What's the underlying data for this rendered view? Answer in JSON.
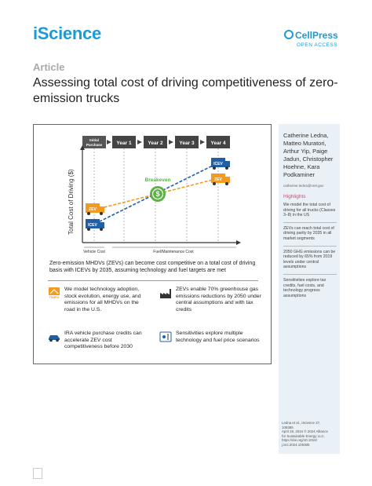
{
  "header": {
    "journal": "iScience",
    "publisher": "CellPress",
    "access": "OPEN ACCESS"
  },
  "article": {
    "type": "Article",
    "title": "Assessing total cost of driving competitiveness of zero-emission trucks"
  },
  "figure": {
    "timeline": [
      "Initial Purchase",
      "Year 1",
      "Year 2",
      "Year 3",
      "Year 4"
    ],
    "ylabel": "Total Cost of Driving ($)",
    "x_left_label": "Vehicle Cost",
    "x_right_label": "Fuel/Maintenance Cost",
    "breakeven_label": "Breakeven",
    "zev_label": "ZEV",
    "icev_label": "ICEV",
    "caption": "Zero-emission MHDVs (ZEVs) can become cost competitive on a total cost of driving basis with ICEVs by 2035, assuming technology and fuel targets are met",
    "points": [
      {
        "icon": "tempo-logo-icon",
        "logo_text": "TEMPO",
        "text": "We model technology adoption, stock evolution, energy use, and emissions for all MHDVs on the road in the U.S."
      },
      {
        "icon": "factory-icon",
        "text": "ZEVs enable 70% greenhouse gas emissions reductions by 2050 under central assumptions and with tax credits"
      },
      {
        "icon": "car-icon",
        "text": "IRA vehicle purchase credits can accelerate ZEV cost competitiveness before 2030"
      },
      {
        "icon": "sliders-icon",
        "text": "Sensitivities explore multiple technology and fuel price scenarios"
      }
    ]
  },
  "sidebar": {
    "authors": "Catherine Ledna, Matteo Muratori, Arthur Yip, Paige Jadun, Christopher Hoehne, Kara Podkaminer",
    "email": "catherine.ledna@nrel.gov",
    "highlights_title": "Highlights",
    "highlights": [
      "We model the total cost of driving for all trucks (Classes 3–8) in the US",
      "ZEVs can reach total cost of driving parity by 2035 in all market segments",
      "2050 GHG emissions can be reduced by 65% from 2019 levels under central assumptions",
      "Sensitivities explore tax credits, fuel costs, and technology progress assumptions"
    ],
    "citation": [
      "Ledna et al., iScience 27,",
      "109385",
      "April 19, 2024 © 2024 Alliance",
      "for Sustainable Energy LLC.",
      "https://doi.org/10.1016/",
      "j.isci.2024.109385"
    ]
  },
  "colors": {
    "brand": "#1a9bd7",
    "zev": "#f39a1f",
    "icev": "#1f5fa8",
    "breakeven": "#5cb146",
    "highlight": "#e0407a"
  }
}
